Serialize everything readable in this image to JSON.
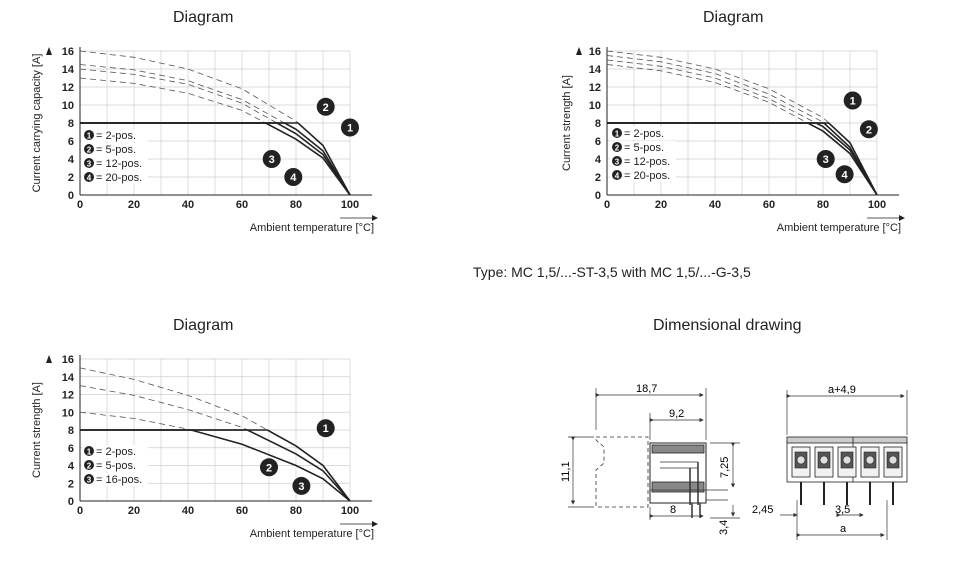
{
  "page": {
    "titles": [
      "Diagram",
      "Diagram",
      "Diagram",
      "Dimensional drawing"
    ],
    "type_line": "Type: MC 1,5/...-ST-3,5 with MC 1,5/...-G-3,5"
  },
  "chart_data": [
    {
      "type": "line",
      "title": "Diagram",
      "xlabel": "Ambient temperature [°C]",
      "ylabel": "Current carrying capacity [A]",
      "xlim": [
        0,
        100
      ],
      "ylim": [
        0,
        16
      ],
      "xticks": [
        0,
        20,
        40,
        60,
        80,
        100
      ],
      "yticks": [
        0,
        2,
        4,
        6,
        8,
        10,
        12,
        14,
        16
      ],
      "grid": true,
      "limit_line": 8,
      "legend": [
        "= 2-pos.",
        "= 5-pos.",
        "= 12-pos.",
        "= 20-pos."
      ],
      "series": [
        {
          "name": "1",
          "x": [
            0,
            20,
            40,
            60,
            80,
            90,
            100
          ],
          "y": [
            16,
            15.3,
            14,
            11.8,
            8.2,
            5.5,
            0
          ]
        },
        {
          "name": "2",
          "x": [
            0,
            20,
            40,
            60,
            80,
            90,
            100
          ],
          "y": [
            14.5,
            13.9,
            12.7,
            10.6,
            7.3,
            4.9,
            0
          ]
        },
        {
          "name": "3",
          "x": [
            0,
            20,
            40,
            60,
            80,
            90,
            100
          ],
          "y": [
            14,
            13.4,
            12.3,
            10.2,
            6.8,
            4.5,
            0
          ]
        },
        {
          "name": "4",
          "x": [
            0,
            20,
            40,
            60,
            80,
            90,
            100
          ],
          "y": [
            13,
            12.4,
            11.3,
            9.4,
            6.2,
            4.1,
            0
          ]
        }
      ],
      "labels": [
        {
          "n": "1",
          "x": 100,
          "y": 7.5
        },
        {
          "n": "2",
          "x": 91,
          "y": 9.8
        },
        {
          "n": "3",
          "x": 71,
          "y": 4
        },
        {
          "n": "4",
          "x": 79,
          "y": 2
        }
      ]
    },
    {
      "type": "line",
      "title": "Diagram",
      "xlabel": "Ambient temperature [°C]",
      "ylabel": "Current strength [A]",
      "xlim": [
        0,
        100
      ],
      "ylim": [
        0,
        16
      ],
      "xticks": [
        0,
        20,
        40,
        60,
        80,
        100
      ],
      "yticks": [
        0,
        2,
        4,
        6,
        8,
        10,
        12,
        14,
        16
      ],
      "grid": true,
      "limit_line": 8,
      "legend": [
        "= 2-pos.",
        "= 5-pos.",
        "= 12-pos.",
        "= 20-pos."
      ],
      "series": [
        {
          "name": "1",
          "x": [
            0,
            20,
            40,
            60,
            80,
            90,
            100
          ],
          "y": [
            16,
            15.3,
            14,
            11.8,
            8.6,
            5.8,
            0
          ]
        },
        {
          "name": "2",
          "x": [
            0,
            20,
            40,
            60,
            80,
            90,
            100
          ],
          "y": [
            15.5,
            14.8,
            13.5,
            11.2,
            8.1,
            5.3,
            0
          ]
        },
        {
          "name": "3",
          "x": [
            0,
            20,
            40,
            60,
            80,
            90,
            100
          ],
          "y": [
            15,
            14.3,
            13,
            10.7,
            7.6,
            5,
            0
          ]
        },
        {
          "name": "4",
          "x": [
            0,
            20,
            40,
            60,
            80,
            90,
            100
          ],
          "y": [
            14.5,
            13.8,
            12.5,
            10.3,
            7.1,
            4.6,
            0
          ]
        }
      ],
      "labels": [
        {
          "n": "1",
          "x": 91,
          "y": 10.5
        },
        {
          "n": "2",
          "x": 97,
          "y": 7.3
        },
        {
          "n": "3",
          "x": 81,
          "y": 4
        },
        {
          "n": "4",
          "x": 88,
          "y": 2.3
        }
      ]
    },
    {
      "type": "line",
      "title": "Diagram",
      "xlabel": "Ambient temperature [°C]",
      "ylabel": "Current strength [A]",
      "xlim": [
        0,
        100
      ],
      "ylim": [
        0,
        16
      ],
      "xticks": [
        0,
        20,
        40,
        60,
        80,
        100
      ],
      "yticks": [
        0,
        2,
        4,
        6,
        8,
        10,
        12,
        14,
        16
      ],
      "grid": true,
      "limit_line": 8,
      "legend": [
        "= 2-pos.",
        "= 5-pos.",
        "= 16-pos."
      ],
      "series": [
        {
          "name": "1",
          "x": [
            0,
            20,
            40,
            60,
            80,
            90,
            100
          ],
          "y": [
            15,
            13.7,
            11.9,
            9.6,
            6.2,
            4,
            0
          ]
        },
        {
          "name": "2",
          "x": [
            0,
            20,
            40,
            60,
            80,
            90,
            100
          ],
          "y": [
            13,
            11.9,
            10.3,
            8.3,
            5.3,
            3.4,
            0
          ]
        },
        {
          "name": "3",
          "x": [
            0,
            20,
            40,
            60,
            80,
            90,
            100
          ],
          "y": [
            10,
            9.3,
            8.1,
            6.4,
            4,
            2.5,
            0
          ]
        }
      ],
      "labels": [
        {
          "n": "1",
          "x": 91,
          "y": 8.2
        },
        {
          "n": "2",
          "x": 70,
          "y": 3.8
        },
        {
          "n": "3",
          "x": 82,
          "y": 1.7
        }
      ]
    }
  ],
  "drawing": {
    "dims": {
      "overall_width": "18,7",
      "inner_width": "9,2",
      "height": "11,1",
      "pin_height": "7,25",
      "base_width": "8",
      "pin_length": "3,4",
      "span": "a+4,9",
      "offset": "2,45",
      "pitch": "3,5",
      "a": "a"
    }
  }
}
